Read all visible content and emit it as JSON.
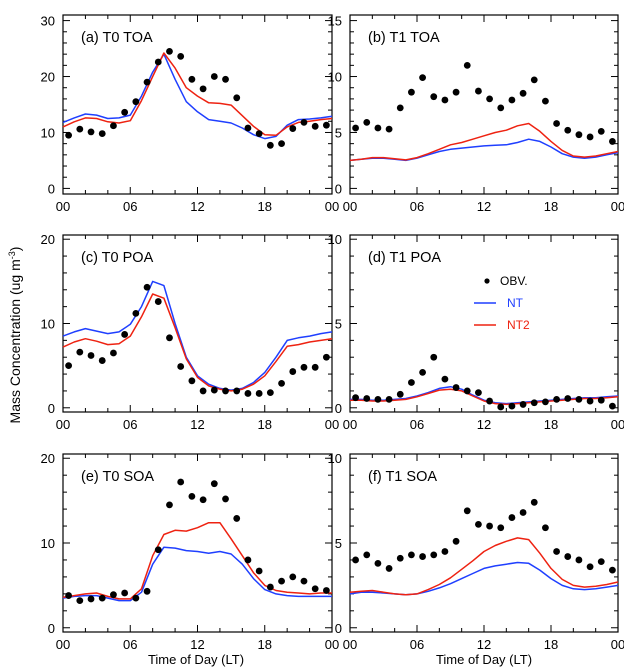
{
  "colors": {
    "obs": "#000000",
    "nt": "#1f3fff",
    "nt2": "#ee2211"
  },
  "legend": {
    "obs": "OBV.",
    "nt": "NT",
    "nt2": "NT2",
    "panel": 3
  },
  "ylabel_main": "Mass Concentration (ug m",
  "ylabel_sup": "-3",
  "ylabel_close": ")",
  "xlabel": "Time of Day (LT)",
  "xtick_labels": [
    "00",
    "06",
    "12",
    "18",
    "00"
  ],
  "chart_data": [
    {
      "type": "line",
      "title": "(a) T0 TOA",
      "xlim": [
        0,
        24
      ],
      "ylim": [
        -1,
        31
      ],
      "yticks": [
        0,
        10,
        20,
        30
      ],
      "yticklabels": [
        "0",
        "10",
        "20",
        "30"
      ],
      "obs": {
        "x": [
          0.5,
          1.5,
          2.5,
          3.5,
          4.5,
          5.5,
          6.5,
          7.5,
          8.5,
          9.5,
          10.5,
          11.5,
          12.5,
          13.5,
          14.5,
          15.5,
          16.5,
          17.5,
          18.5,
          19.5,
          20.5,
          21.5,
          22.5,
          23.5
        ],
        "y": [
          9.5,
          10.6,
          10.1,
          9.8,
          11.2,
          13.6,
          15.5,
          19.0,
          22.6,
          24.5,
          23.6,
          19.5,
          17.8,
          20.0,
          19.5,
          16.2,
          10.8,
          9.8,
          7.7,
          8.0,
          10.7,
          11.8,
          11.1,
          11.3
        ]
      },
      "series": [
        {
          "name": "NT",
          "x": [
            0,
            1,
            2,
            3,
            4,
            5,
            6,
            7,
            8,
            9,
            10,
            11,
            12,
            13,
            14,
            15,
            16,
            17,
            18,
            19,
            20,
            21,
            22,
            23,
            24
          ],
          "y": [
            11.8,
            12.6,
            13.3,
            13.1,
            12.5,
            12.6,
            13.1,
            16.5,
            20.8,
            24.0,
            19.5,
            15.5,
            13.7,
            12.3,
            12.0,
            11.7,
            10.8,
            9.6,
            8.9,
            9.3,
            11.3,
            12.3,
            12.4,
            12.6,
            12.9
          ]
        },
        {
          "name": "NT2",
          "x": [
            0,
            1,
            2,
            3,
            4,
            5,
            6,
            7,
            8,
            9,
            10,
            11,
            12,
            13,
            14,
            15,
            16,
            17,
            18,
            19,
            20,
            21,
            22,
            23,
            24
          ],
          "y": [
            11.0,
            11.9,
            12.6,
            12.5,
            11.9,
            11.7,
            12.1,
            15.7,
            20.0,
            24.2,
            21.5,
            18.0,
            16.5,
            15.3,
            15.2,
            14.9,
            13.0,
            11.1,
            9.6,
            9.5,
            11.0,
            11.8,
            12.0,
            12.3,
            12.5
          ]
        }
      ]
    },
    {
      "type": "line",
      "title": "(b) T1 TOA",
      "xlim": [
        0,
        24
      ],
      "ylim": [
        -0.5,
        15.5
      ],
      "yticks": [
        0,
        5,
        10,
        15
      ],
      "yticklabels": [
        "0",
        "5",
        "10",
        "15"
      ],
      "obs": {
        "x": [
          0.5,
          1.5,
          2.5,
          3.5,
          4.5,
          5.5,
          6.5,
          7.5,
          8.5,
          9.5,
          10.5,
          11.5,
          12.5,
          13.5,
          14.5,
          15.5,
          16.5,
          17.5,
          18.5,
          19.5,
          20.5,
          21.5,
          22.5,
          23.5
        ],
        "y": [
          5.4,
          5.9,
          5.4,
          5.3,
          7.2,
          8.6,
          9.9,
          8.2,
          7.9,
          8.6,
          11.0,
          8.7,
          8.0,
          7.2,
          7.9,
          8.5,
          9.7,
          7.8,
          5.8,
          5.2,
          4.8,
          4.6,
          5.1,
          4.2
        ]
      },
      "series": [
        {
          "name": "NT",
          "x": [
            0,
            1,
            2,
            3,
            4,
            5,
            6,
            7,
            8,
            9,
            10,
            11,
            12,
            13,
            14,
            15,
            16,
            17,
            18,
            19,
            20,
            21,
            22,
            23,
            24
          ],
          "y": [
            2.5,
            2.6,
            2.7,
            2.7,
            2.6,
            2.5,
            2.7,
            3.0,
            3.3,
            3.5,
            3.6,
            3.7,
            3.8,
            3.85,
            3.9,
            4.1,
            4.4,
            4.2,
            3.7,
            3.1,
            2.8,
            2.7,
            2.8,
            3.0,
            3.2
          ]
        },
        {
          "name": "NT2",
          "x": [
            0,
            1,
            2,
            3,
            4,
            5,
            6,
            7,
            8,
            9,
            10,
            11,
            12,
            13,
            14,
            15,
            16,
            17,
            18,
            19,
            20,
            21,
            22,
            23,
            24
          ],
          "y": [
            2.5,
            2.6,
            2.75,
            2.75,
            2.65,
            2.55,
            2.75,
            3.1,
            3.5,
            3.9,
            4.1,
            4.4,
            4.7,
            5.0,
            5.2,
            5.6,
            5.8,
            5.1,
            4.2,
            3.4,
            2.9,
            2.8,
            2.9,
            3.1,
            3.3
          ]
        }
      ]
    },
    {
      "type": "line",
      "title": "(c) T0 POA",
      "xlim": [
        0,
        24
      ],
      "ylim": [
        -0.5,
        20.5
      ],
      "yticks": [
        0,
        10,
        20
      ],
      "yticklabels": [
        "0",
        "10",
        "20"
      ],
      "obs": {
        "x": [
          0.5,
          1.5,
          2.5,
          3.5,
          4.5,
          5.5,
          6.5,
          7.5,
          8.5,
          9.5,
          10.5,
          11.5,
          12.5,
          13.5,
          14.5,
          15.5,
          16.5,
          17.5,
          18.5,
          19.5,
          20.5,
          21.5,
          22.5,
          23.5
        ],
        "y": [
          5.0,
          6.6,
          6.2,
          5.6,
          6.5,
          8.7,
          11.2,
          14.3,
          12.6,
          8.3,
          4.9,
          3.2,
          2.0,
          2.1,
          2.0,
          2.0,
          1.7,
          1.7,
          1.8,
          2.9,
          4.3,
          4.8,
          4.8,
          6.0
        ]
      },
      "series": [
        {
          "name": "NT",
          "x": [
            0,
            1,
            2,
            3,
            4,
            5,
            6,
            7,
            8,
            9,
            10,
            11,
            12,
            13,
            14,
            15,
            16,
            17,
            18,
            19,
            20,
            21,
            22,
            23,
            24
          ],
          "y": [
            8.5,
            9.0,
            9.4,
            9.1,
            8.8,
            9.0,
            9.9,
            12.0,
            15.0,
            14.5,
            10.0,
            6.0,
            3.8,
            2.8,
            2.3,
            2.1,
            2.3,
            3.0,
            4.2,
            6.0,
            8.0,
            8.3,
            8.5,
            8.8,
            9.0
          ]
        },
        {
          "name": "NT2",
          "x": [
            0,
            1,
            2,
            3,
            4,
            5,
            6,
            7,
            8,
            9,
            10,
            11,
            12,
            13,
            14,
            15,
            16,
            17,
            18,
            19,
            20,
            21,
            22,
            23,
            24
          ],
          "y": [
            7.2,
            7.8,
            8.2,
            7.9,
            7.5,
            7.6,
            8.5,
            10.8,
            13.5,
            13.0,
            9.5,
            5.8,
            3.6,
            2.6,
            2.2,
            2.0,
            2.2,
            2.8,
            3.8,
            5.5,
            7.3,
            7.5,
            7.8,
            8.0,
            8.2
          ]
        }
      ]
    },
    {
      "type": "line",
      "title": "(d) T1 POA",
      "xlim": [
        0,
        24
      ],
      "ylim": [
        -0.25,
        10.25
      ],
      "yticks": [
        0,
        5,
        10
      ],
      "yticklabels": [
        "0",
        "5",
        "10"
      ],
      "obs": {
        "x": [
          0.5,
          1.5,
          2.5,
          3.5,
          4.5,
          5.5,
          6.5,
          7.5,
          8.5,
          9.5,
          10.5,
          11.5,
          12.5,
          13.5,
          14.5,
          15.5,
          16.5,
          17.5,
          18.5,
          19.5,
          20.5,
          21.5,
          22.5,
          23.5
        ],
        "y": [
          0.6,
          0.55,
          0.5,
          0.5,
          0.8,
          1.5,
          2.1,
          3.0,
          1.7,
          1.2,
          1.0,
          0.9,
          0.4,
          0.05,
          0.1,
          0.2,
          0.3,
          0.35,
          0.5,
          0.55,
          0.5,
          0.4,
          0.45,
          0.1
        ]
      },
      "series": [
        {
          "name": "NT",
          "x": [
            0,
            1,
            2,
            3,
            4,
            5,
            6,
            7,
            8,
            9,
            10,
            11,
            12,
            13,
            14,
            15,
            16,
            17,
            18,
            19,
            20,
            21,
            22,
            23,
            24
          ],
          "y": [
            0.5,
            0.5,
            0.45,
            0.45,
            0.5,
            0.55,
            0.7,
            0.9,
            1.15,
            1.25,
            1.1,
            0.75,
            0.45,
            0.3,
            0.25,
            0.3,
            0.35,
            0.4,
            0.45,
            0.5,
            0.55,
            0.6,
            0.6,
            0.65,
            0.7
          ]
        },
        {
          "name": "NT2",
          "x": [
            0,
            1,
            2,
            3,
            4,
            5,
            6,
            7,
            8,
            9,
            10,
            11,
            12,
            13,
            14,
            15,
            16,
            17,
            18,
            19,
            20,
            21,
            22,
            23,
            24
          ],
          "y": [
            0.45,
            0.45,
            0.4,
            0.4,
            0.45,
            0.5,
            0.65,
            0.85,
            1.05,
            1.1,
            1.0,
            0.7,
            0.4,
            0.25,
            0.2,
            0.25,
            0.3,
            0.35,
            0.4,
            0.45,
            0.5,
            0.55,
            0.55,
            0.6,
            0.65
          ]
        }
      ]
    },
    {
      "type": "line",
      "title": "(e) T0 SOA",
      "xlim": [
        0,
        24
      ],
      "ylim": [
        -0.5,
        20.5
      ],
      "yticks": [
        0,
        10,
        20
      ],
      "yticklabels": [
        "0",
        "10",
        "20"
      ],
      "obs": {
        "x": [
          0.5,
          1.5,
          2.5,
          3.5,
          4.5,
          5.5,
          6.5,
          7.5,
          8.5,
          9.5,
          10.5,
          11.5,
          12.5,
          13.5,
          14.5,
          15.5,
          16.5,
          17.5,
          18.5,
          19.5,
          20.5,
          21.5,
          22.5,
          23.5
        ],
        "y": [
          3.8,
          3.2,
          3.4,
          3.5,
          3.9,
          4.1,
          3.5,
          4.3,
          9.2,
          14.5,
          17.2,
          15.5,
          15.1,
          17.0,
          15.2,
          12.9,
          8.0,
          6.7,
          4.8,
          5.5,
          6.0,
          5.5,
          4.6,
          4.4
        ]
      },
      "series": [
        {
          "name": "NT",
          "x": [
            0,
            1,
            2,
            3,
            4,
            5,
            6,
            7,
            8,
            9,
            10,
            11,
            12,
            13,
            14,
            15,
            16,
            17,
            18,
            19,
            20,
            21,
            22,
            23,
            24
          ],
          "y": [
            3.5,
            3.7,
            3.8,
            3.8,
            3.5,
            3.2,
            3.2,
            4.2,
            7.5,
            9.5,
            9.4,
            9.1,
            9.0,
            8.8,
            9.0,
            8.7,
            7.5,
            5.8,
            4.5,
            4.0,
            3.8,
            3.7,
            3.7,
            3.7,
            3.7
          ]
        },
        {
          "name": "NT2",
          "x": [
            0,
            1,
            2,
            3,
            4,
            5,
            6,
            7,
            8,
            9,
            10,
            11,
            12,
            13,
            14,
            15,
            16,
            17,
            18,
            19,
            20,
            21,
            22,
            23,
            24
          ],
          "y": [
            3.6,
            3.8,
            4.0,
            4.1,
            3.7,
            3.4,
            3.4,
            4.6,
            8.5,
            11.0,
            11.5,
            11.4,
            11.8,
            12.4,
            12.4,
            10.5,
            8.5,
            6.5,
            5.0,
            4.4,
            4.2,
            4.1,
            4.0,
            4.1,
            4.1
          ]
        }
      ]
    },
    {
      "type": "line",
      "title": "(f) T1 SOA",
      "xlim": [
        0,
        24
      ],
      "ylim": [
        -0.25,
        10.25
      ],
      "yticks": [
        0,
        5,
        10
      ],
      "yticklabels": [
        "0",
        "5",
        "10"
      ],
      "obs": {
        "x": [
          0.5,
          1.5,
          2.5,
          3.5,
          4.5,
          5.5,
          6.5,
          7.5,
          8.5,
          9.5,
          10.5,
          11.5,
          12.5,
          13.5,
          14.5,
          15.5,
          16.5,
          17.5,
          18.5,
          19.5,
          20.5,
          21.5,
          22.5,
          23.5
        ],
        "y": [
          4.0,
          4.3,
          3.8,
          3.5,
          4.1,
          4.3,
          4.2,
          4.3,
          4.5,
          5.1,
          6.9,
          6.1,
          6.0,
          5.9,
          6.5,
          6.8,
          7.4,
          5.9,
          4.5,
          4.2,
          4.0,
          3.6,
          3.9,
          3.4
        ]
      },
      "series": [
        {
          "name": "NT",
          "x": [
            0,
            1,
            2,
            3,
            4,
            5,
            6,
            7,
            8,
            9,
            10,
            11,
            12,
            13,
            14,
            15,
            16,
            17,
            18,
            19,
            20,
            21,
            22,
            23,
            24
          ],
          "y": [
            2.0,
            2.1,
            2.1,
            2.05,
            2.0,
            1.95,
            2.0,
            2.15,
            2.35,
            2.6,
            2.9,
            3.2,
            3.5,
            3.65,
            3.75,
            3.85,
            3.8,
            3.4,
            2.9,
            2.5,
            2.3,
            2.25,
            2.3,
            2.4,
            2.5
          ]
        },
        {
          "name": "NT2",
          "x": [
            0,
            1,
            2,
            3,
            4,
            5,
            6,
            7,
            8,
            9,
            10,
            11,
            12,
            13,
            14,
            15,
            16,
            17,
            18,
            19,
            20,
            21,
            22,
            23,
            24
          ],
          "y": [
            2.1,
            2.15,
            2.2,
            2.1,
            2.0,
            1.95,
            2.0,
            2.25,
            2.55,
            2.95,
            3.45,
            3.95,
            4.5,
            4.85,
            5.1,
            5.3,
            5.2,
            4.4,
            3.5,
            2.85,
            2.5,
            2.4,
            2.45,
            2.55,
            2.7
          ]
        }
      ]
    }
  ]
}
